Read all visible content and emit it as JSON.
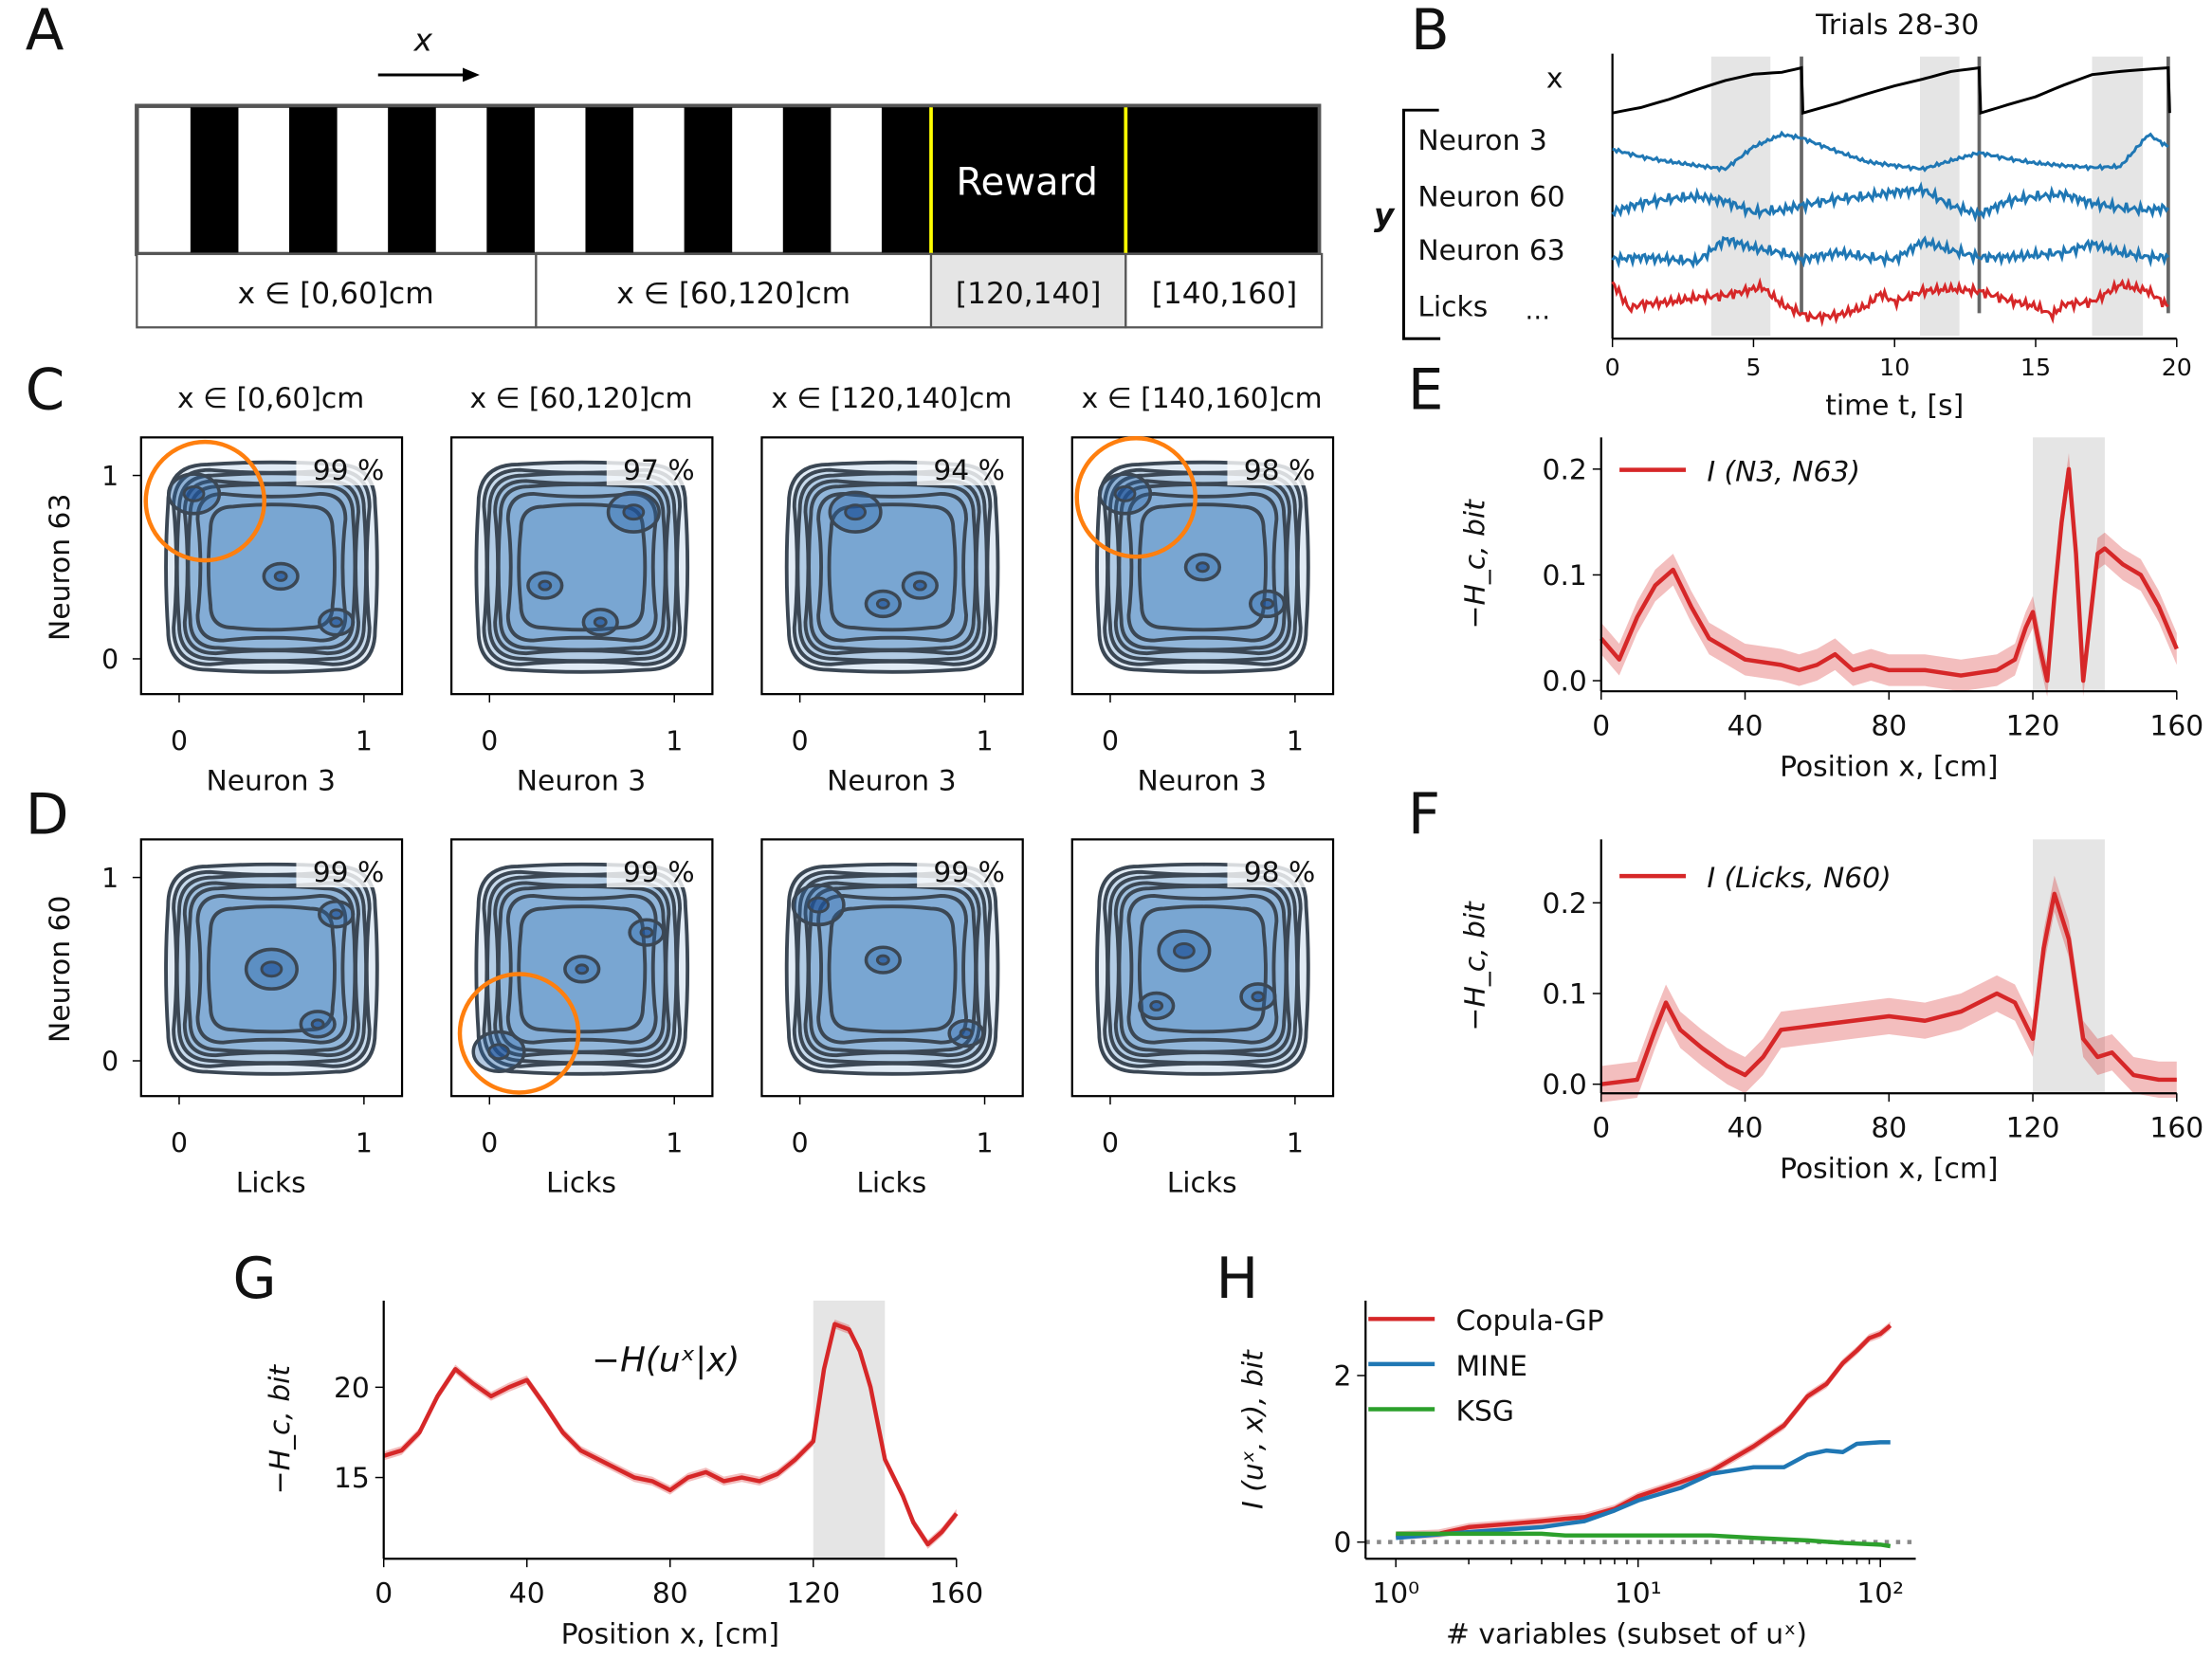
{
  "panel_letters": [
    "A",
    "B",
    "C",
    "D",
    "E",
    "F",
    "G",
    "H"
  ],
  "colors": {
    "red": "#d62728",
    "blue": "#1f77b4",
    "green": "#2ca02c",
    "black": "#000000",
    "shade": "#e5e5e5",
    "orange": "#ff7f0e",
    "yellow": "#ffff00",
    "contour": "#3b4754"
  },
  "panelA": {
    "direction_label": "x",
    "reward_label": "Reward",
    "segments": [
      "x ∈ [0,60]cm",
      "x ∈ [60,120]cm",
      "[120,140]",
      "[140,160]"
    ]
  },
  "chart_data": [
    {
      "id": "B",
      "type": "line",
      "title": "Trials 28-30",
      "xlabel": "time t, [s]",
      "xticks": [
        "0",
        "5",
        "10",
        "15",
        "20"
      ],
      "xlim": [
        0,
        20
      ],
      "trace_labels": {
        "x": "x",
        "y": "y",
        "ellipsis": "…"
      },
      "reward_intervals": [
        [
          3.5,
          5.6
        ],
        [
          10.9,
          12.3
        ],
        [
          17.0,
          18.8
        ]
      ],
      "trial_boundaries": [
        6.7,
        13.0,
        19.7
      ],
      "series": [
        {
          "name": "x",
          "color": "#000000",
          "t": [
            0,
            1,
            2,
            3,
            4,
            5,
            6,
            6.7,
            6.75,
            8,
            9,
            10,
            11,
            12,
            13,
            13.05,
            14,
            15,
            16,
            17,
            18,
            19,
            19.7,
            19.75
          ],
          "values": [
            0,
            12,
            30,
            52,
            72,
            86,
            90,
            100,
            0,
            22,
            42,
            60,
            75,
            92,
            100,
            0,
            18,
            36,
            62,
            85,
            92,
            97,
            100,
            0
          ]
        },
        {
          "name": "Neuron 3",
          "color": "#1f77b4",
          "t": [
            0,
            1,
            2,
            3,
            4,
            5,
            6,
            6.7,
            8,
            9,
            10,
            11,
            12,
            13,
            14,
            15,
            16,
            17,
            18,
            19,
            19.7
          ],
          "values": [
            0.55,
            0.4,
            0.3,
            0.22,
            0.15,
            0.6,
            0.85,
            0.78,
            0.5,
            0.3,
            0.22,
            0.15,
            0.32,
            0.48,
            0.36,
            0.27,
            0.22,
            0.18,
            0.2,
            0.85,
            0.6
          ]
        },
        {
          "name": "Neuron 60",
          "color": "#1f77b4",
          "t": [
            0,
            1,
            2,
            3,
            4,
            5,
            6,
            6.7,
            8,
            9,
            10,
            11,
            12,
            13,
            14,
            15,
            16,
            17,
            18,
            19,
            19.7
          ],
          "values": [
            0.3,
            0.5,
            0.6,
            0.65,
            0.55,
            0.3,
            0.35,
            0.45,
            0.6,
            0.65,
            0.75,
            0.8,
            0.45,
            0.25,
            0.55,
            0.65,
            0.7,
            0.5,
            0.4,
            0.35,
            0.4
          ]
        },
        {
          "name": "Neuron 63",
          "color": "#1f77b4",
          "t": [
            0,
            1,
            2,
            3,
            4,
            5,
            6,
            6.7,
            8,
            9,
            10,
            11,
            12,
            13,
            14,
            15,
            16,
            17,
            18,
            19,
            19.7
          ],
          "values": [
            0.35,
            0.4,
            0.35,
            0.3,
            0.8,
            0.6,
            0.5,
            0.35,
            0.5,
            0.4,
            0.35,
            0.75,
            0.55,
            0.4,
            0.4,
            0.45,
            0.5,
            0.7,
            0.5,
            0.4,
            0.4
          ]
        },
        {
          "name": "Licks",
          "color": "#d62728",
          "t": [
            0,
            0.6,
            1,
            2,
            3,
            4,
            5,
            5.3,
            6,
            7,
            8,
            9,
            9.5,
            10,
            11,
            12,
            13,
            14,
            15,
            15.6,
            16,
            17,
            18,
            19,
            19.7
          ],
          "values": [
            0.9,
            0.3,
            0.4,
            0.45,
            0.55,
            0.6,
            0.75,
            0.8,
            0.4,
            0.1,
            0.15,
            0.35,
            0.65,
            0.45,
            0.7,
            0.75,
            0.7,
            0.5,
            0.35,
            0.15,
            0.4,
            0.45,
            0.85,
            0.7,
            0.35
          ]
        }
      ]
    },
    {
      "id": "C",
      "type": "contour",
      "xlabel": "Neuron 3",
      "ylabel": "Neuron 63",
      "xticks": [
        "0",
        "1"
      ],
      "yticks": [
        "0",
        "1"
      ],
      "panels": [
        {
          "title": "x ∈ [0,60]cm",
          "percent": "99 %",
          "highlight": [
            0.14,
            0.86
          ],
          "modes": [
            [
              0.08,
              0.9
            ],
            [
              0.85,
              0.2
            ],
            [
              0.55,
              0.45
            ]
          ]
        },
        {
          "title": "x ∈ [60,120]cm",
          "percent": "97 %",
          "highlight": null,
          "modes": [
            [
              0.78,
              0.8
            ],
            [
              0.3,
              0.4
            ],
            [
              0.6,
              0.2
            ]
          ]
        },
        {
          "title": "x ∈ [120,140]cm",
          "percent": "94 %",
          "highlight": null,
          "modes": [
            [
              0.3,
              0.8
            ],
            [
              0.65,
              0.4
            ],
            [
              0.45,
              0.3
            ]
          ]
        },
        {
          "title": "x ∈ [140,160]cm",
          "percent": "98 %",
          "highlight": [
            0.14,
            0.88
          ],
          "modes": [
            [
              0.08,
              0.9
            ],
            [
              0.85,
              0.3
            ],
            [
              0.5,
              0.5
            ]
          ]
        }
      ]
    },
    {
      "id": "D",
      "type": "contour",
      "xlabel": "Licks",
      "ylabel": "Neuron 60",
      "xticks": [
        "0",
        "1"
      ],
      "yticks": [
        "0",
        "1"
      ],
      "panels": [
        {
          "title": "",
          "percent": "99 %",
          "highlight": null,
          "modes": [
            [
              0.5,
              0.5
            ],
            [
              0.75,
              0.2
            ],
            [
              0.85,
              0.8
            ]
          ]
        },
        {
          "title": "",
          "percent": "99 %",
          "highlight": [
            0.16,
            0.15
          ],
          "modes": [
            [
              0.05,
              0.05
            ],
            [
              0.85,
              0.7
            ],
            [
              0.5,
              0.5
            ]
          ]
        },
        {
          "title": "",
          "percent": "99 %",
          "highlight": null,
          "modes": [
            [
              0.1,
              0.85
            ],
            [
              0.45,
              0.55
            ],
            [
              0.9,
              0.15
            ]
          ]
        },
        {
          "title": "",
          "percent": "98 %",
          "highlight": null,
          "modes": [
            [
              0.4,
              0.6
            ],
            [
              0.8,
              0.35
            ],
            [
              0.25,
              0.3
            ]
          ]
        }
      ]
    },
    {
      "id": "E",
      "type": "line",
      "xlabel": "Position x, [cm]",
      "ylabel": "−H_c, bit",
      "xlim": [
        0,
        160
      ],
      "ylim": [
        -0.01,
        0.23
      ],
      "xticks": [
        0,
        40,
        80,
        120,
        160
      ],
      "yticks": [
        0.0,
        0.1,
        0.2
      ],
      "ytick_labels": [
        "0.0",
        "0.1",
        "0.2"
      ],
      "shaded": [
        120,
        140
      ],
      "legend": "I (N3, N63)",
      "legend_placement": "top-left",
      "series": [
        {
          "name": "I (N3, N63)",
          "color": "#d62728",
          "x": [
            0,
            5,
            10,
            15,
            20,
            25,
            30,
            35,
            40,
            50,
            55,
            60,
            65,
            70,
            75,
            80,
            90,
            100,
            110,
            115,
            118,
            120,
            122,
            124,
            126,
            128,
            130,
            132,
            134,
            136,
            138,
            140,
            145,
            150,
            155,
            160
          ],
          "y": [
            0.04,
            0.02,
            0.06,
            0.09,
            0.105,
            0.07,
            0.04,
            0.03,
            0.02,
            0.015,
            0.01,
            0.015,
            0.025,
            0.01,
            0.015,
            0.01,
            0.01,
            0.005,
            0.01,
            0.02,
            0.05,
            0.065,
            0.03,
            0.0,
            0.08,
            0.15,
            0.2,
            0.12,
            0.0,
            0.06,
            0.12,
            0.125,
            0.11,
            0.1,
            0.07,
            0.03
          ],
          "band": 0.015
        }
      ]
    },
    {
      "id": "F",
      "type": "line",
      "xlabel": "Position x, [cm]",
      "ylabel": "−H_c, bit",
      "xlim": [
        0,
        160
      ],
      "ylim": [
        -0.01,
        0.27
      ],
      "xticks": [
        0,
        40,
        80,
        120,
        160
      ],
      "yticks": [
        0.0,
        0.1,
        0.2
      ],
      "ytick_labels": [
        "0.0",
        "0.1",
        "0.2"
      ],
      "shaded": [
        120,
        140
      ],
      "legend": "I (Licks, N60)",
      "legend_placement": "top-left",
      "series": [
        {
          "name": "I (Licks, N60)",
          "color": "#d62728",
          "x": [
            0,
            10,
            15,
            18,
            22,
            28,
            35,
            40,
            45,
            50,
            60,
            70,
            80,
            90,
            100,
            110,
            115,
            120,
            123,
            126,
            130,
            134,
            138,
            142,
            148,
            155,
            160
          ],
          "y": [
            0.0,
            0.005,
            0.06,
            0.09,
            0.06,
            0.04,
            0.02,
            0.01,
            0.03,
            0.06,
            0.065,
            0.07,
            0.075,
            0.07,
            0.08,
            0.1,
            0.09,
            0.05,
            0.15,
            0.21,
            0.16,
            0.05,
            0.03,
            0.035,
            0.01,
            0.005,
            0.005
          ],
          "band": 0.02
        }
      ]
    },
    {
      "id": "G",
      "type": "line",
      "xlabel": "Position x, [cm]",
      "ylabel": "−H_c, bit",
      "annotation": "−H(uˣ|x)",
      "xlim": [
        0,
        160
      ],
      "ylim": [
        10.5,
        24.8
      ],
      "xticks": [
        0,
        40,
        80,
        120,
        160
      ],
      "yticks": [
        15,
        20
      ],
      "ytick_labels": [
        "15",
        "20"
      ],
      "shaded": [
        120,
        140
      ],
      "series": [
        {
          "color": "#d62728",
          "x": [
            0,
            5,
            10,
            15,
            20,
            25,
            30,
            35,
            40,
            45,
            50,
            55,
            60,
            65,
            70,
            75,
            80,
            85,
            90,
            95,
            100,
            105,
            110,
            115,
            120,
            123,
            126,
            130,
            133,
            136,
            140,
            145,
            148,
            152,
            156,
            160
          ],
          "y": [
            16.2,
            16.5,
            17.5,
            19.5,
            21,
            20.2,
            19.5,
            20,
            20.4,
            19,
            17.5,
            16.5,
            16,
            15.5,
            15,
            14.8,
            14.3,
            15,
            15.3,
            14.8,
            15,
            14.8,
            15.2,
            16,
            17,
            21,
            23.5,
            23.2,
            22,
            20,
            16,
            14,
            12.5,
            11.3,
            12,
            13
          ],
          "band": 0.25
        }
      ]
    },
    {
      "id": "H",
      "type": "line",
      "xlabel": "# variables (subset of uˣ)",
      "ylabel": "I (uˣ, x), bit",
      "xscale": "log",
      "xlim": [
        0.75,
        140
      ],
      "ylim": [
        -0.2,
        2.9
      ],
      "xticks": [
        1,
        10,
        100
      ],
      "xtick_labels": [
        "10⁰",
        "10¹",
        "10²"
      ],
      "yticks": [
        0,
        2
      ],
      "ytick_labels": [
        "0",
        "2"
      ],
      "zero_line": "dotted",
      "legend_placement": "top-left",
      "series": [
        {
          "name": "Copula-GP",
          "color": "#d62728",
          "x": [
            1,
            1.5,
            2,
            3,
            4,
            5,
            6,
            8,
            10,
            15,
            20,
            30,
            40,
            50,
            60,
            70,
            80,
            90,
            100,
            110
          ],
          "y": [
            0.08,
            0.1,
            0.18,
            0.22,
            0.25,
            0.28,
            0.3,
            0.4,
            0.55,
            0.72,
            0.85,
            1.15,
            1.4,
            1.75,
            1.9,
            2.15,
            2.3,
            2.45,
            2.5,
            2.6
          ],
          "band": 0.05
        },
        {
          "name": "MINE",
          "color": "#1f77b4",
          "x": [
            1,
            2,
            4,
            5,
            6,
            8,
            10,
            15,
            20,
            30,
            40,
            50,
            60,
            70,
            80,
            100,
            110
          ],
          "y": [
            0.05,
            0.12,
            0.18,
            0.22,
            0.25,
            0.38,
            0.5,
            0.65,
            0.82,
            0.9,
            0.9,
            1.05,
            1.1,
            1.08,
            1.18,
            1.2,
            1.2
          ]
        },
        {
          "name": "KSG",
          "color": "#2ca02c",
          "x": [
            1,
            4,
            5,
            10,
            20,
            30,
            50,
            70,
            100,
            110
          ],
          "y": [
            0.1,
            0.1,
            0.08,
            0.08,
            0.08,
            0.05,
            0.02,
            -0.01,
            -0.03,
            -0.05
          ]
        }
      ]
    }
  ]
}
